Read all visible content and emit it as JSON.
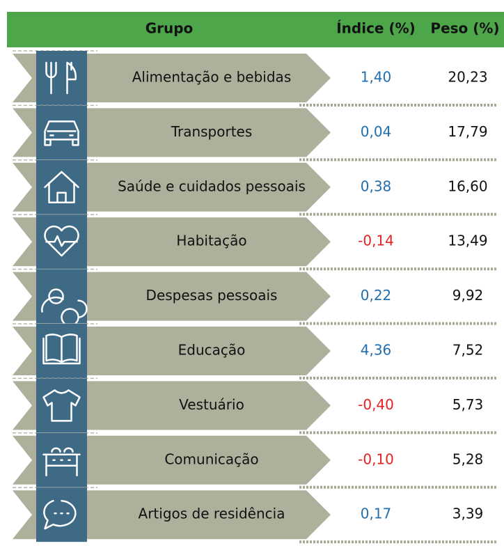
{
  "header": {
    "columns": [
      "Grupo",
      "Índice (%)",
      "Peso (%)"
    ]
  },
  "rows": [
    {
      "group": "Alimentação e bebidas",
      "index": "1,40",
      "weight": "20,23"
    },
    {
      "group": "Transportes",
      "index": "0,04",
      "weight": "17,79"
    },
    {
      "group": "Saúde e cuidados pessoais",
      "index": "0,38",
      "weight": "16,60"
    },
    {
      "group": "Habitação",
      "index": "-0,14",
      "weight": "13,49"
    },
    {
      "group": "Despesas pessoais",
      "index": "0,22",
      "weight": "9,92"
    },
    {
      "group": "Educação",
      "index": "4,36",
      "weight": "7,52"
    },
    {
      "group": "Vestuário",
      "index": "-0,40",
      "weight": "5,73"
    },
    {
      "group": "Comunicação",
      "index": "-0,10",
      "weight": "5,28"
    },
    {
      "group": "Artigos de residência",
      "index": "0,17",
      "weight": "3,39"
    }
  ]
}
